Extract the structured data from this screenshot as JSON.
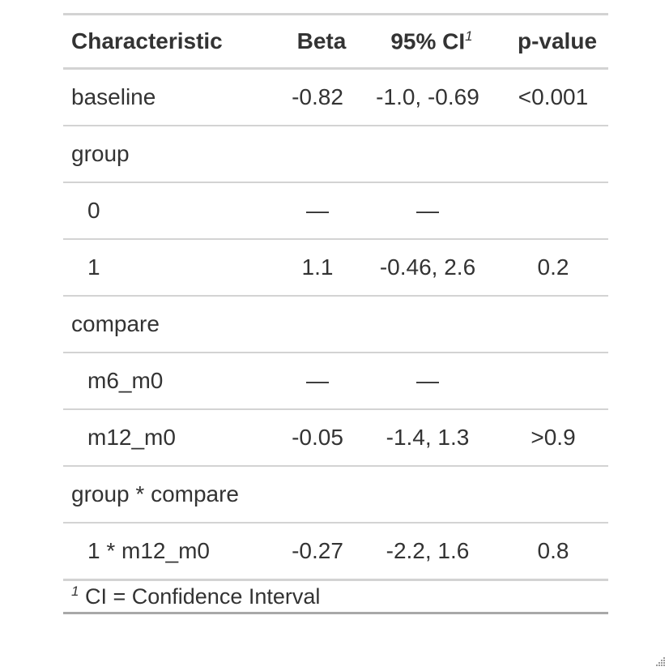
{
  "table": {
    "headers": {
      "characteristic": "Characteristic",
      "beta": "Beta",
      "ci": "95% CI",
      "ci_marker": "1",
      "pvalue": "p-value"
    },
    "rows": [
      {
        "label": "baseline",
        "indent": false,
        "beta": "-0.82",
        "ci": "-1.0, -0.69",
        "p": "<0.001"
      },
      {
        "label": "group",
        "indent": false,
        "beta": "",
        "ci": "",
        "p": ""
      },
      {
        "label": "0",
        "indent": true,
        "beta": "—",
        "ci": "—",
        "p": ""
      },
      {
        "label": "1",
        "indent": true,
        "beta": "1.1",
        "ci": "-0.46, 2.6",
        "p": "0.2"
      },
      {
        "label": "compare",
        "indent": false,
        "beta": "",
        "ci": "",
        "p": ""
      },
      {
        "label": "m6_m0",
        "indent": true,
        "beta": "—",
        "ci": "—",
        "p": ""
      },
      {
        "label": "m12_m0",
        "indent": true,
        "beta": "-0.05",
        "ci": "-1.4, 1.3",
        "p": ">0.9"
      },
      {
        "label": "group * compare",
        "indent": false,
        "beta": "",
        "ci": "",
        "p": ""
      },
      {
        "label": "1 * m12_m0",
        "indent": true,
        "beta": "-0.27",
        "ci": "-2.2, 1.6",
        "p": "0.8"
      }
    ],
    "footnote": {
      "marker": "1",
      "text": " CI = Confidence Interval"
    }
  },
  "colors": {
    "text": "#333333",
    "rule": "#d3d3d3",
    "bottom_rule": "#a8a8a8"
  },
  "icons": {
    "resize_grip": "resize-grip-icon"
  }
}
